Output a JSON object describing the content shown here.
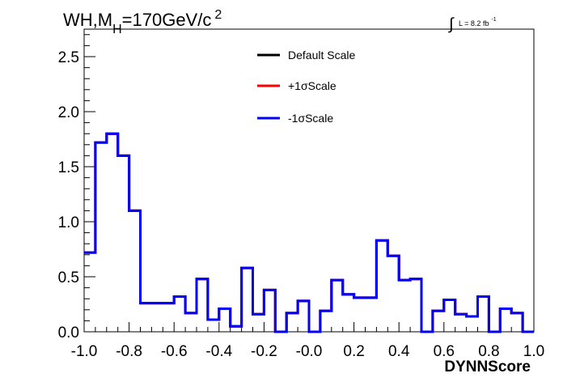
{
  "chart_data": {
    "type": "line",
    "title_parts": {
      "main": "WH,M",
      "sub": "H",
      "rest": "=170GeV/c",
      "sup": "2"
    },
    "lumi_parts": {
      "integral": "∫",
      "text": "L = 8.2 fb",
      "sup": "-1"
    },
    "xlabel": "DYNNScore",
    "ylabel": "",
    "xlim": [
      -1.0,
      1.0
    ],
    "ylim": [
      0.0,
      2.75
    ],
    "x_ticks": [
      "-1.0",
      "-0.8",
      "-0.6",
      "-0.4",
      "-0.2",
      "-0.0",
      "0.2",
      "0.4",
      "0.6",
      "0.8",
      "1.0"
    ],
    "y_ticks": [
      "0.0",
      "0.5",
      "1.0",
      "1.5",
      "2.0",
      "2.5"
    ],
    "bin_edges": [
      -1.0,
      -0.95,
      -0.9,
      -0.85,
      -0.8,
      -0.75,
      -0.7,
      -0.65,
      -0.6,
      -0.55,
      -0.5,
      -0.45,
      -0.4,
      -0.35,
      -0.3,
      -0.25,
      -0.2,
      -0.15,
      -0.1,
      -0.05,
      0.0,
      0.05,
      0.1,
      0.15,
      0.2,
      0.25,
      0.3,
      0.35,
      0.4,
      0.45,
      0.5,
      0.55,
      0.6,
      0.65,
      0.7,
      0.75,
      0.8,
      0.85,
      0.9,
      0.95,
      1.0
    ],
    "series": [
      {
        "name": "Default Scale",
        "color": "#000000",
        "values": [
          0.72,
          1.72,
          1.8,
          1.6,
          1.1,
          0.26,
          0.26,
          0.26,
          0.32,
          0.17,
          0.48,
          0.11,
          0.21,
          0.05,
          0.58,
          0.16,
          0.38,
          0.0,
          0.17,
          0.28,
          0.0,
          0.19,
          0.47,
          0.34,
          0.31,
          0.31,
          0.83,
          0.69,
          0.47,
          0.48,
          0.0,
          0.19,
          0.29,
          0.16,
          0.14,
          0.32,
          0.0,
          0.21,
          0.17,
          0.0
        ]
      },
      {
        "name": "+1σScale",
        "color": "#ff0000",
        "values": [
          0.72,
          1.72,
          1.8,
          1.6,
          1.1,
          0.26,
          0.26,
          0.26,
          0.32,
          0.17,
          0.48,
          0.11,
          0.21,
          0.05,
          0.58,
          0.16,
          0.38,
          0.0,
          0.17,
          0.28,
          0.0,
          0.19,
          0.47,
          0.34,
          0.31,
          0.31,
          0.83,
          0.69,
          0.47,
          0.48,
          0.0,
          0.19,
          0.29,
          0.16,
          0.14,
          0.32,
          0.0,
          0.21,
          0.17,
          0.0
        ]
      },
      {
        "name": "-1σScale",
        "color": "#0000ff",
        "values": [
          0.72,
          1.72,
          1.8,
          1.6,
          1.1,
          0.26,
          0.26,
          0.26,
          0.32,
          0.17,
          0.48,
          0.11,
          0.21,
          0.05,
          0.58,
          0.16,
          0.38,
          0.0,
          0.17,
          0.28,
          0.0,
          0.19,
          0.47,
          0.34,
          0.31,
          0.31,
          0.83,
          0.69,
          0.47,
          0.48,
          0.0,
          0.19,
          0.29,
          0.16,
          0.14,
          0.32,
          0.0,
          0.21,
          0.17,
          0.0
        ]
      }
    ],
    "legend_position": "top-center",
    "grid": false
  }
}
